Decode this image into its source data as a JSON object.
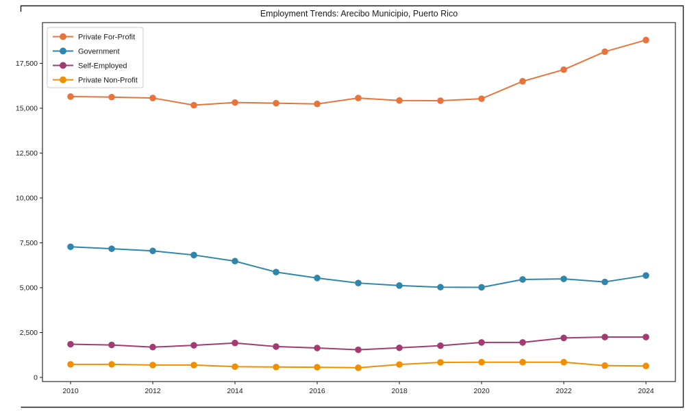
{
  "figure": {
    "title": "Employment Trends: Arecibo Municipio, Puerto Rico"
  },
  "chart_data": {
    "type": "line",
    "title": "Employment Trends: Arecibo Municipio, Puerto Rico",
    "xlabel": "",
    "ylabel": "",
    "grid": false,
    "legend_position": "upper-left",
    "x": [
      2010,
      2011,
      2012,
      2013,
      2014,
      2015,
      2016,
      2017,
      2018,
      2019,
      2020,
      2021,
      2022,
      2023,
      2024
    ],
    "x_ticks": [
      2010,
      2012,
      2014,
      2016,
      2018,
      2020,
      2022,
      2024
    ],
    "x_tick_labels": [
      "2010",
      "2012",
      "2014",
      "2016",
      "2018",
      "2020",
      "2022",
      "2024"
    ],
    "y_ticks": [
      0,
      2500,
      5000,
      7500,
      10000,
      12500,
      15000,
      17500
    ],
    "y_tick_labels": [
      "0",
      "2,500",
      "5,000",
      "7,500",
      "10,000",
      "12,500",
      "15,000",
      "17,500"
    ],
    "ylim": [
      -230,
      19780
    ],
    "xlim": [
      2009.3,
      2024.7
    ],
    "series": [
      {
        "name": "Private For-Profit",
        "color": "#e8743b",
        "values": [
          15650,
          15620,
          15570,
          15170,
          15320,
          15280,
          15240,
          15570,
          15430,
          15420,
          15530,
          16500,
          17150,
          18150,
          18800
        ]
      },
      {
        "name": "Government",
        "color": "#2e86ab",
        "values": [
          7280,
          7170,
          7050,
          6820,
          6480,
          5870,
          5540,
          5260,
          5120,
          5030,
          5020,
          5460,
          5490,
          5320,
          5680
        ]
      },
      {
        "name": "Self-Employed",
        "color": "#a23b72",
        "values": [
          1850,
          1810,
          1690,
          1790,
          1920,
          1720,
          1640,
          1540,
          1650,
          1770,
          1950,
          1950,
          2200,
          2250,
          2250
        ]
      },
      {
        "name": "Private Non-Profit",
        "color": "#f18f01",
        "values": [
          730,
          730,
          690,
          690,
          600,
          580,
          570,
          540,
          720,
          840,
          850,
          850,
          850,
          660,
          640
        ]
      }
    ]
  }
}
